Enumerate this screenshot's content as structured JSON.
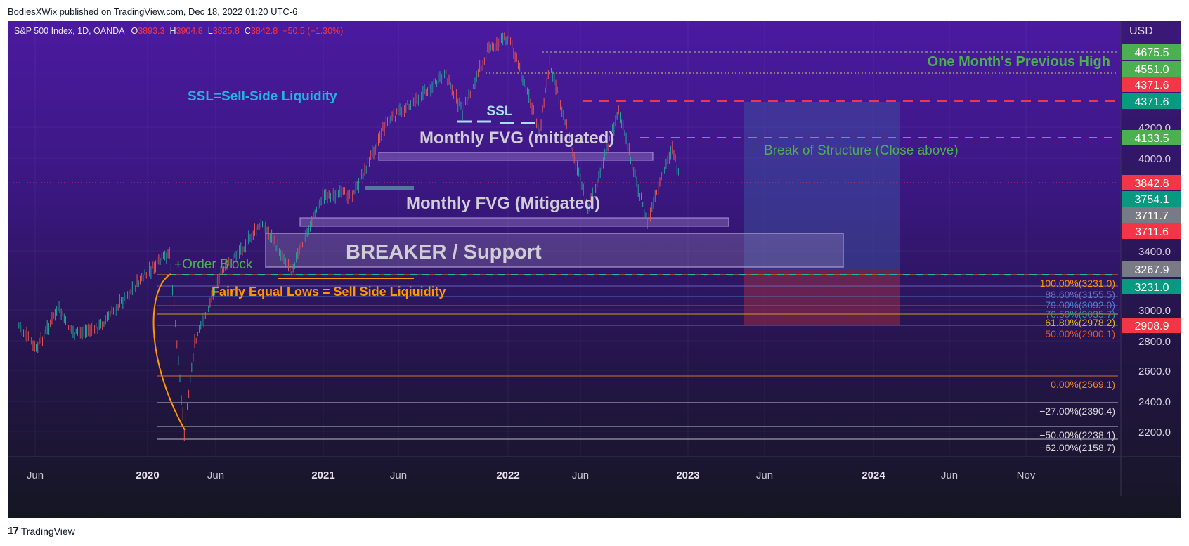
{
  "header": {
    "published_text": "BodiesXWix published on TradingView.com, Dec 18, 2022 01:20 UTC-6"
  },
  "legend": {
    "symbol_text": "S&P 500 Index, 1D, OANDA",
    "o_label": "O",
    "o_value": "3893.3",
    "h_label": "H",
    "h_value": "3904.8",
    "l_label": "L",
    "l_value": "3825.8",
    "c_label": "C",
    "c_value": "3842.8",
    "change": "−50.5 (−1.30%)",
    "value_color": "#f23645"
  },
  "footer": {
    "brand_mark": "17",
    "brand_name": "TradingView"
  },
  "annotations": {
    "ssl_definition": "SSL=Sell-Side Liquidity",
    "ssl": "SSL",
    "fvg_upper": "Monthly  FVG (mitigated)",
    "fvg_lower": "Monthly FVG (Mitigated)",
    "breaker": "BREAKER / Support",
    "order_block": "+Order Block",
    "equal_lows": "Fairly Equal Lows = Sell Side Liqiuidity",
    "bos": "Break of Structure (Close above)",
    "prev_high": "One Month's Previous High"
  },
  "colors": {
    "green_text": "#4caf50",
    "cyan_text": "#1fb5e0",
    "orange_text": "#ff9800",
    "red_line": "#f23645",
    "teal": "#089981",
    "grey_text": "#d1cdd6"
  },
  "chart_data": {
    "type": "candlestick",
    "price_axis_unit": "USD",
    "y_ticks": [
      2200,
      2400,
      2600,
      2800,
      3000,
      3400,
      4000,
      4200
    ],
    "x_ticks": [
      "Jun",
      "2020",
      "Jun",
      "2021",
      "Jun",
      "2022",
      "Jun",
      "2023",
      "Jun",
      "2024",
      "Jun",
      "Nov"
    ],
    "price_series_close": [
      [
        "2019-05-01",
        2900
      ],
      [
        "2019-06-03",
        2740
      ],
      [
        "2019-07-15",
        3010
      ],
      [
        "2019-08-15",
        2840
      ],
      [
        "2019-10-01",
        2890
      ],
      [
        "2019-12-15",
        3190
      ],
      [
        "2020-02-19",
        3390
      ],
      [
        "2020-03-23",
        2190
      ],
      [
        "2020-04-15",
        2780
      ],
      [
        "2020-06-08",
        3230
      ],
      [
        "2020-09-02",
        3580
      ],
      [
        "2020-10-30",
        3270
      ],
      [
        "2020-12-31",
        3760
      ],
      [
        "2021-03-04",
        3770
      ],
      [
        "2021-05-07",
        4230
      ],
      [
        "2021-09-02",
        4540
      ],
      [
        "2021-10-04",
        4300
      ],
      [
        "2021-11-22",
        4700
      ],
      [
        "2022-01-03",
        4796
      ],
      [
        "2022-03-08",
        4170
      ],
      [
        "2022-03-29",
        4630
      ],
      [
        "2022-06-16",
        3666
      ],
      [
        "2022-08-16",
        4305
      ],
      [
        "2022-10-12",
        3580
      ],
      [
        "2022-12-01",
        4080
      ],
      [
        "2022-12-16",
        3842
      ]
    ],
    "price_labels": [
      {
        "value": "4675.5",
        "color": "#4caf50"
      },
      {
        "value": "4551.0",
        "color": "#4caf50"
      },
      {
        "value": "4371.6",
        "color": "#f23645"
      },
      {
        "value": "4371.6",
        "color": "#089981"
      },
      {
        "value": "4133.5",
        "color": "#4caf50"
      },
      {
        "value": "3842.8",
        "color": "#f23645"
      },
      {
        "value": "3754.1",
        "color": "#089981"
      },
      {
        "value": "3711.7",
        "color": "#787b86"
      },
      {
        "value": "3711.6",
        "color": "#f23645"
      },
      {
        "value": "3267.9",
        "color": "#787b86"
      },
      {
        "value": "3231.0",
        "color": "#089981"
      },
      {
        "value": "2908.9",
        "color": "#f23645"
      }
    ],
    "fib_levels": [
      {
        "label": "100.00%(3231.0)",
        "color": "#ff9800"
      },
      {
        "label": "88.60%(3155.5)",
        "color": "#6f6fc4"
      },
      {
        "label": "79.00%(3092.0)",
        "color": "#4a7fd4"
      },
      {
        "label": "70.50%(3035.7)",
        "color": "#2a9a8a"
      },
      {
        "label": "61.80%(2978.2)",
        "color": "#e0b31a"
      },
      {
        "label": "50.00%(2900.1)",
        "color": "#e0552a"
      },
      {
        "label": "0.00%(2569.1)",
        "color": "#f0802a"
      },
      {
        "label": "−27.00%(2390.4)",
        "color": "#d8d8d8"
      },
      {
        "label": "−50.00%(2238.1)",
        "color": "#d8d8d8"
      },
      {
        "label": "−62.00%(2158.7)",
        "color": "#d8d8d8"
      }
    ]
  }
}
